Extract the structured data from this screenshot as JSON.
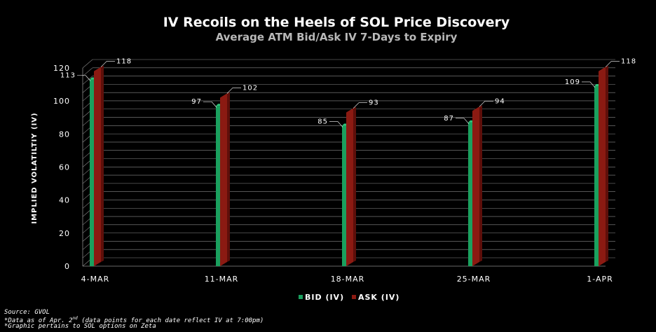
{
  "colors": {
    "bid": "#1aa05e",
    "ask": "#8b1a12",
    "background": "#000000",
    "grid": "#8a8a8a"
  },
  "chart_data": {
    "type": "bar",
    "title": "IV Recoils on the Heels of SOL Price Discovery",
    "subtitle": "Average ATM Bid/Ask IV 7-Days to Expiry",
    "ylabel": "IMPLIED VOLATILTIY (IV)",
    "xlabel": "",
    "ylim": [
      0,
      120
    ],
    "yticks": [
      0,
      20,
      40,
      60,
      80,
      100,
      120
    ],
    "categories": [
      "4-Mar",
      "11-Mar",
      "18-Mar",
      "25-Mar",
      "1-Apr"
    ],
    "series": [
      {
        "name": "Bid (IV)",
        "values": [
          113,
          97,
          85,
          87,
          109
        ]
      },
      {
        "name": "Ask (IV)",
        "values": [
          118,
          102,
          93,
          94,
          118
        ]
      }
    ],
    "grid": true,
    "legend": "bottom-center"
  },
  "footnotes": {
    "source": "Source: GVOL",
    "data_note_pre": "*Data as of Apr. 2",
    "data_note_sup": "nd",
    "data_note_post": " (data points for each date reflect IV at 7:00pm)",
    "graphic_note": "*Graphic pertains to SOL options on Zeta"
  }
}
